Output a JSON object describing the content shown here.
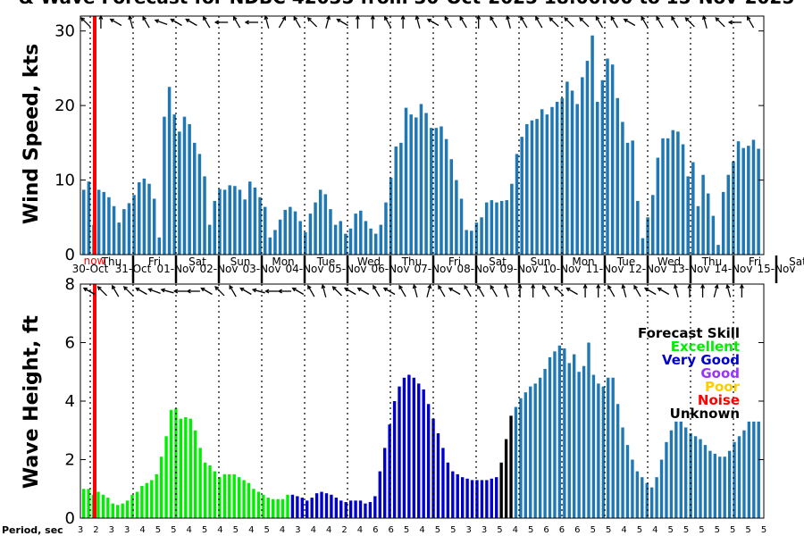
{
  "title": "& Wave Forecast for NDBC 42035 from 30-Oct-2025 18:00:00 to 15-Nov-2025",
  "colors": {
    "bar": "#1f77b4",
    "now": "#ff0000",
    "excellent": "#00ee00",
    "very_good": "#0000cc",
    "good": "#9933ff",
    "poor": "#ffcc00",
    "noise": "#ff0000",
    "unknown": "#000000"
  },
  "days": [
    {
      "day": "Thu",
      "date": "30-Oct"
    },
    {
      "day": "Fri",
      "date": "31-Oct"
    },
    {
      "day": "Sat",
      "date": "01-Nov"
    },
    {
      "day": "Sun",
      "date": "02-Nov"
    },
    {
      "day": "Mon",
      "date": "03-Nov"
    },
    {
      "day": "Tue",
      "date": "04-Nov"
    },
    {
      "day": "Wed",
      "date": "05-Nov"
    },
    {
      "day": "Thu",
      "date": "06-Nov"
    },
    {
      "day": "Fri",
      "date": "07-Nov"
    },
    {
      "day": "Sat",
      "date": "08-Nov"
    },
    {
      "day": "Sun",
      "date": "09-Nov"
    },
    {
      "day": "Mon",
      "date": "10-Nov"
    },
    {
      "day": "Tue",
      "date": "11-Nov"
    },
    {
      "day": "Wed",
      "date": "12-Nov"
    },
    {
      "day": "Thu",
      "date": "13-Nov"
    },
    {
      "day": "Fri",
      "date": "14-Nov"
    },
    {
      "day": "Sat",
      "date": "15-Nov"
    }
  ],
  "now_label": "now",
  "skill_legend": {
    "title": "Forecast Skill",
    "excellent": "Excellent",
    "very_good": "Very Good",
    "good": "Good",
    "poor": "Poor",
    "noise": "Noise",
    "unknown": "Unknown"
  },
  "period_label": "Period, sec",
  "chart_data": [
    {
      "type": "bar",
      "ylabel": "Wind Speed, kts",
      "ylim": [
        0,
        32
      ],
      "yticks": [
        0,
        10,
        20,
        30
      ],
      "values": [
        8.7,
        9.8,
        4,
        8.7,
        8.4,
        7.7,
        6.5,
        4.3,
        6.1,
        6.9,
        8,
        9.7,
        10.2,
        9.5,
        7.5,
        2.3,
        18.5,
        22.5,
        18.8,
        16.5,
        18.5,
        17.5,
        15,
        13.5,
        10.5,
        4,
        7.2,
        8.8,
        8.7,
        9.3,
        9.2,
        8.7,
        7.4,
        9.8,
        9,
        7.7,
        6.4,
        2.3,
        3.3,
        4.7,
        6,
        6.4,
        5.8,
        4.5,
        3,
        5.5,
        7,
        8.7,
        8.1,
        6.1,
        4,
        4.5,
        2.8,
        3.5,
        5.5,
        5.9,
        4.5,
        3.5,
        2.8,
        4,
        7,
        10.3,
        14.5,
        15,
        19.7,
        18.8,
        18.4,
        20.2,
        19,
        17,
        17,
        17.2,
        15.5,
        12.8,
        10,
        7.5,
        3.3,
        3.2,
        4.3,
        5,
        7,
        7.3,
        7,
        7.2,
        7.3,
        9.5,
        13.5,
        15.8,
        17.5,
        18,
        18.2,
        19.5,
        18.8,
        19.8,
        20.5,
        21,
        23.2,
        22,
        20.2,
        23.8,
        26,
        29.4,
        20.5,
        23.4,
        26.3,
        25.5,
        21,
        17.8,
        15,
        15.3,
        7.2,
        2.2,
        5,
        8,
        13,
        15.6,
        15.6,
        16.7,
        16.5,
        14.8,
        10.5,
        12.4,
        6.5,
        10.7,
        8.2,
        5.2,
        1.3,
        8.4,
        10.7,
        12.5,
        15.2,
        14.3,
        14.6,
        15.4,
        14.2
      ],
      "wind_dir_deg": [
        315,
        300,
        330,
        0,
        330,
        315,
        300,
        315,
        330,
        345,
        330,
        315,
        330,
        0,
        300,
        290,
        315,
        330,
        300,
        330,
        315,
        300,
        285,
        285,
        330,
        315,
        285,
        270,
        270,
        300,
        330,
        315,
        300,
        270,
        270,
        330,
        345,
        0,
        45,
        30,
        315,
        300,
        330,
        300,
        270,
        315,
        0,
        30,
        15,
        330,
        300,
        300,
        315,
        300,
        0,
        330,
        345,
        0,
        30,
        15,
        330,
        300,
        315,
        0,
        330,
        0,
        345,
        330,
        315,
        300,
        0,
        330,
        330,
        345,
        15,
        330,
        330,
        330,
        0,
        30,
        15,
        330,
        345,
        315,
        345,
        0,
        345,
        330,
        330,
        315,
        330,
        330,
        330,
        315,
        330,
        315,
        315,
        300,
        330,
        315,
        315,
        315,
        330,
        315,
        0,
        330,
        315,
        300,
        300,
        330,
        315,
        330,
        315,
        300,
        330,
        15,
        0,
        330,
        345,
        330,
        315,
        330,
        300,
        345,
        315,
        300,
        315,
        270,
        270,
        270,
        330,
        300,
        330,
        300,
        270,
        270,
        270,
        270
      ]
    },
    {
      "type": "bar",
      "ylabel": "Wave Height, ft",
      "ylim": [
        0,
        8
      ],
      "yticks": [
        0,
        2,
        4,
        6,
        8
      ],
      "values": [
        1,
        1,
        0.8,
        0.9,
        0.8,
        0.7,
        0.5,
        0.45,
        0.5,
        0.6,
        0.8,
        0.9,
        1.1,
        1.2,
        1.3,
        1.5,
        2.1,
        2.8,
        3.7,
        3.75,
        3.4,
        3.45,
        3.4,
        3,
        2.4,
        1.9,
        1.8,
        1.6,
        1.4,
        1.5,
        1.5,
        1.5,
        1.4,
        1.3,
        1.2,
        1,
        0.9,
        0.8,
        0.7,
        0.65,
        0.65,
        0.65,
        0.8,
        0.8,
        0.75,
        0.7,
        0.6,
        0.7,
        0.85,
        0.9,
        0.85,
        0.8,
        0.7,
        0.6,
        0.55,
        0.6,
        0.6,
        0.6,
        0.5,
        0.55,
        0.75,
        1.6,
        2.4,
        3.2,
        4,
        4.5,
        4.8,
        4.9,
        4.8,
        4.6,
        4.4,
        3.9,
        3.4,
        2.9,
        2.4,
        1.9,
        1.6,
        1.5,
        1.4,
        1.35,
        1.3,
        1.3,
        1.3,
        1.3,
        1.35,
        1.4,
        1.9,
        2.7,
        3.5,
        3.8,
        4.1,
        4.3,
        4.5,
        4.6,
        4.8,
        5.1,
        5.5,
        5.7,
        5.9,
        5.8,
        5.3,
        5.6,
        5,
        5.2,
        6,
        4.9,
        4.6,
        4.5,
        4.8,
        4.8,
        3.9,
        3.1,
        2.5,
        2,
        1.6,
        1.4,
        1.2,
        1.05,
        1.4,
        2,
        2.6,
        3,
        3.3,
        3.3,
        3.1,
        2.9,
        2.8,
        2.7,
        2.5,
        2.3,
        2.2,
        2.1,
        2.1,
        2.3,
        2.6,
        2.8,
        3,
        3.3,
        3.3,
        3.3
      ],
      "skill": [
        "excellent",
        "excellent",
        "excellent",
        "excellent",
        "excellent",
        "excellent",
        "excellent",
        "excellent",
        "excellent",
        "excellent",
        "excellent",
        "excellent",
        "excellent",
        "excellent",
        "excellent",
        "excellent",
        "excellent",
        "excellent",
        "excellent",
        "excellent",
        "excellent",
        "excellent",
        "excellent",
        "excellent",
        "excellent",
        "excellent",
        "excellent",
        "excellent",
        "excellent",
        "excellent",
        "excellent",
        "excellent",
        "excellent",
        "excellent",
        "excellent",
        "excellent",
        "excellent",
        "excellent",
        "excellent",
        "excellent",
        "excellent",
        "excellent",
        "excellent",
        "very_good",
        "very_good",
        "very_good",
        "very_good",
        "very_good",
        "very_good",
        "very_good",
        "very_good",
        "very_good",
        "very_good",
        "very_good",
        "very_good",
        "very_good",
        "very_good",
        "very_good",
        "very_good",
        "very_good",
        "very_good",
        "very_good",
        "very_good",
        "very_good",
        "very_good",
        "very_good",
        "very_good",
        "very_good",
        "very_good",
        "very_good",
        "very_good",
        "very_good",
        "very_good",
        "very_good",
        "very_good",
        "very_good",
        "very_good",
        "very_good",
        "very_good",
        "very_good",
        "very_good",
        "very_good",
        "very_good",
        "very_good",
        "very_good",
        "very_good",
        "unknown",
        "unknown",
        "unknown",
        "default",
        "default",
        "default",
        "default",
        "default",
        "default",
        "default",
        "default",
        "default",
        "default",
        "default",
        "default",
        "default",
        "default",
        "default",
        "default",
        "default",
        "default",
        "default",
        "default",
        "default",
        "default",
        "default",
        "default",
        "default",
        "default",
        "default",
        "default",
        "default",
        "default",
        "default",
        "default",
        "default",
        "default",
        "default",
        "default",
        "default",
        "default",
        "default",
        "default",
        "default",
        "default",
        "default",
        "default",
        "default",
        "default",
        "default",
        "default",
        "default",
        "default",
        "default",
        "default",
        "default"
      ],
      "period_labels": [
        "3",
        "2",
        "3",
        "3",
        "4",
        "5",
        "5",
        "4",
        "5",
        "4",
        "5",
        "4",
        "5",
        "4",
        "3",
        "4",
        "4",
        "2",
        "4",
        "6",
        "6",
        "5",
        "4",
        "5",
        "5",
        "3",
        "3",
        "5",
        "4",
        "5",
        "6",
        "6",
        "6",
        "5",
        "5",
        "4",
        "5",
        "4",
        "5",
        "5",
        "5",
        "5",
        "5",
        "5",
        "5"
      ],
      "wave_dir_deg": [
        300,
        315,
        330,
        315,
        300,
        290,
        285,
        270,
        270,
        300,
        315,
        330,
        300,
        285,
        270,
        270,
        300,
        330,
        345,
        315,
        300,
        300,
        330,
        300,
        330,
        345,
        15,
        330,
        300,
        330,
        330,
        330,
        345,
        0,
        0,
        330,
        315,
        300,
        0,
        0,
        330,
        345,
        330,
        300,
        300,
        345,
        0,
        0,
        15,
        345,
        0
      ]
    }
  ]
}
